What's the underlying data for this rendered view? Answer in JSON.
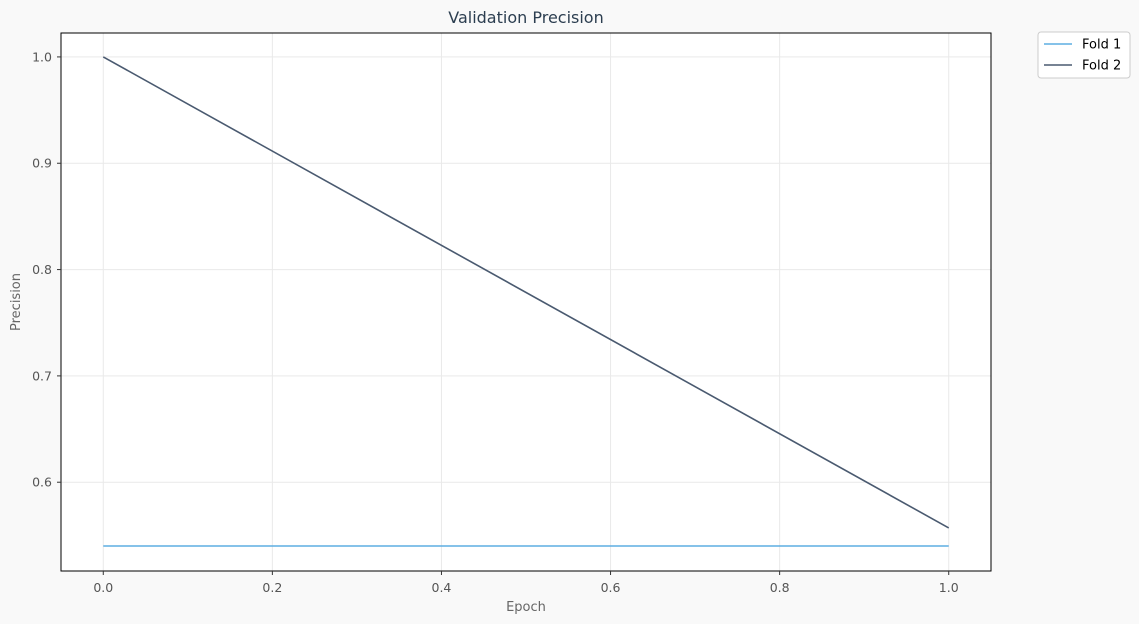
{
  "chart_data": {
    "type": "line",
    "title": "Validation Precision",
    "xlabel": "Epoch",
    "ylabel": "Precision",
    "x": [
      0.0,
      1.0
    ],
    "xlim": [
      -0.05,
      1.05
    ],
    "ylim": [
      0.5165,
      1.0225
    ],
    "xticks": [
      0.0,
      0.2,
      0.4,
      0.6,
      0.8,
      1.0
    ],
    "xtick_labels": [
      "0.0",
      "0.2",
      "0.4",
      "0.6",
      "0.8",
      "1.0"
    ],
    "yticks": [
      0.6,
      0.7,
      0.8,
      0.9,
      1.0
    ],
    "ytick_labels": [
      "0.6",
      "0.7",
      "0.8",
      "0.9",
      "1.0"
    ],
    "grid": true,
    "legend_position": "outside-top-right",
    "series": [
      {
        "name": "Fold 1",
        "color": "#5dade2",
        "values": [
          0.54,
          0.54
        ]
      },
      {
        "name": "Fold 2",
        "color": "#4a5a70",
        "values": [
          1.0,
          0.557
        ]
      }
    ]
  }
}
